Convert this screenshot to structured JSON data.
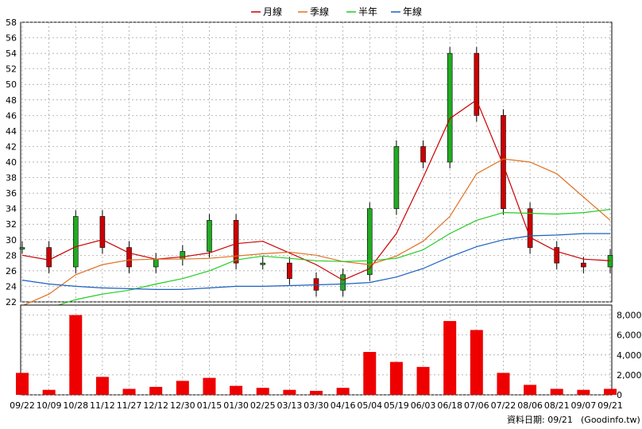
{
  "chart_data": [
    {
      "type": "line",
      "title": "",
      "legend": {
        "placement": "top-center",
        "entries": [
          {
            "label": "月線",
            "color": "#cc0000"
          },
          {
            "label": "季線",
            "color": "#e07020"
          },
          {
            "label": "半年",
            "color": "#22cc22"
          },
          {
            "label": "年線",
            "color": "#1a60c0"
          }
        ]
      },
      "y_axis_side": "left",
      "ylim": [
        22,
        58
      ],
      "yticks": [
        22,
        24,
        26,
        28,
        30,
        32,
        34,
        36,
        38,
        40,
        42,
        44,
        46,
        48,
        50,
        52,
        54,
        56,
        58
      ],
      "grid": true,
      "candles": {
        "up_color": "#22aa22",
        "down_color": "#cc0000",
        "key_prices": [
          {
            "period": "09/22",
            "close": 29
          },
          {
            "period": "10/09",
            "close": 26.5
          },
          {
            "period": "10/28",
            "close": 33
          },
          {
            "period": "11/12",
            "close": 29
          },
          {
            "period": "11/27",
            "close": 26.5
          },
          {
            "period": "12/12",
            "close": 27.5
          },
          {
            "period": "12/30",
            "close": 28.5
          },
          {
            "period": "01/15",
            "close": 32.5
          },
          {
            "period": "01/30",
            "close": 27
          },
          {
            "period": "02/25",
            "close": 27
          },
          {
            "period": "03/13",
            "close": 25
          },
          {
            "period": "03/30",
            "close": 23.5
          },
          {
            "period": "04/16",
            "close": 25.5
          },
          {
            "period": "05/04",
            "close": 34
          },
          {
            "period": "05/19",
            "close": 42
          },
          {
            "period": "06/03",
            "close": 40
          },
          {
            "period": "06/18",
            "close": 54
          },
          {
            "period": "07/06",
            "close": 46
          },
          {
            "period": "07/22",
            "close": 34
          },
          {
            "period": "08/06",
            "close": 29
          },
          {
            "period": "08/21",
            "close": 27
          },
          {
            "period": "09/07",
            "close": 26.5
          },
          {
            "period": "09/21",
            "close": 28
          }
        ]
      },
      "series": [
        {
          "name": "月線",
          "color": "#cc0000",
          "values": [
            28.0,
            27.4,
            29.1,
            30.0,
            28.3,
            27.5,
            27.8,
            28.3,
            29.5,
            29.8,
            28.3,
            26.8,
            24.8,
            26.3,
            30.8,
            38.0,
            45.6,
            48.0,
            39.6,
            30.3,
            28.5,
            27.5,
            27.3
          ]
        },
        {
          "name": "季線",
          "color": "#e07020",
          "values": [
            21.5,
            23.0,
            25.5,
            26.8,
            27.4,
            27.5,
            27.5,
            27.6,
            27.9,
            28.2,
            28.4,
            28.0,
            27.2,
            26.8,
            27.9,
            29.8,
            33.0,
            38.5,
            40.4,
            40.0,
            38.5,
            35.5,
            32.5
          ]
        },
        {
          "name": "半年",
          "color": "#22cc22",
          "values": [
            20.0,
            21.2,
            22.3,
            23.0,
            23.5,
            24.3,
            25.0,
            26.0,
            27.4,
            27.9,
            27.6,
            27.3,
            27.2,
            27.3,
            27.6,
            28.7,
            30.8,
            32.5,
            33.5,
            33.4,
            33.3,
            33.5,
            33.9
          ]
        },
        {
          "name": "年線",
          "color": "#1a60c0",
          "values": [
            24.8,
            24.3,
            24.0,
            23.8,
            23.7,
            23.6,
            23.6,
            23.8,
            24.0,
            24.0,
            24.1,
            24.2,
            24.3,
            24.5,
            25.2,
            26.3,
            27.8,
            29.1,
            30.0,
            30.5,
            30.6,
            30.8,
            30.8
          ]
        }
      ]
    },
    {
      "type": "bar",
      "y_axis_side": "right",
      "ylim": [
        0,
        9000
      ],
      "yticks": [
        0,
        2000,
        4000,
        6000,
        8000
      ],
      "ytick_labels": [
        "0",
        "2,000",
        "4,000",
        "6,000",
        "8,000"
      ],
      "grid": true,
      "bar_color": "#ee0000",
      "categories": [
        "09/22",
        "10/09",
        "10/28",
        "11/12",
        "11/27",
        "12/12",
        "12/30",
        "01/15",
        "01/30",
        "02/25",
        "03/13",
        "03/30",
        "04/16",
        "05/04",
        "05/19",
        "06/03",
        "06/18",
        "07/06",
        "07/22",
        "08/06",
        "08/21",
        "09/07",
        "09/21"
      ],
      "values": [
        2200,
        500,
        8000,
        1800,
        600,
        800,
        1400,
        1700,
        900,
        700,
        500,
        400,
        700,
        4300,
        3300,
        2800,
        7400,
        6500,
        2200,
        1000,
        600,
        500,
        600
      ]
    }
  ],
  "x_axis": {
    "ticks": [
      "09/22",
      "10/09",
      "10/28",
      "11/12",
      "11/27",
      "12/12",
      "12/30",
      "01/15",
      "01/30",
      "02/25",
      "03/13",
      "03/30",
      "04/16",
      "05/04",
      "05/19",
      "06/03",
      "06/18",
      "07/06",
      "07/22",
      "08/06",
      "08/21",
      "09/07",
      "09/21"
    ]
  },
  "footer": {
    "data_date": "資料日期: 09/21",
    "source": "(Goodinfo.tw)"
  }
}
